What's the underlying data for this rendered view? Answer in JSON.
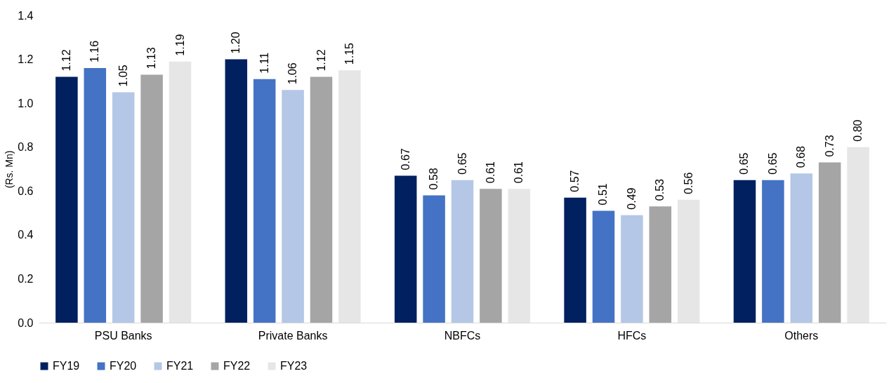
{
  "chart_data": {
    "type": "bar",
    "ylabel": "(Rs. Mn)",
    "categories": [
      "PSU Banks",
      "Private Banks",
      "NBFCs",
      "HFCs",
      "Others"
    ],
    "ylim": [
      0,
      1.4
    ],
    "yticks": [
      {
        "value": 0,
        "label": "0.0"
      },
      {
        "value": 0.2,
        "label": "0.2"
      },
      {
        "value": 0.4,
        "label": "0.4"
      },
      {
        "value": 0.6,
        "label": "0.6"
      },
      {
        "value": 0.8,
        "label": "0.8"
      },
      {
        "value": 1,
        "label": "1.0"
      },
      {
        "value": 1.2,
        "label": "1.2"
      },
      {
        "value": 1.4,
        "label": "1.4"
      }
    ],
    "grid": false,
    "legend": "bottom",
    "series": [
      {
        "name": "FY19",
        "color": "#002060",
        "values": [
          1.12,
          1.2,
          0.67,
          0.57,
          0.65
        ],
        "value_labels": [
          "1.12",
          "1.20",
          "0.67",
          "0.57",
          "0.65"
        ]
      },
      {
        "name": "FY20",
        "color": "#4472c4",
        "values": [
          1.16,
          1.11,
          0.58,
          0.51,
          0.65
        ],
        "value_labels": [
          "1.16",
          "1.11",
          "0.58",
          "0.51",
          "0.65"
        ]
      },
      {
        "name": "FY21",
        "color": "#b4c7e7",
        "values": [
          1.05,
          1.06,
          0.65,
          0.49,
          0.68
        ],
        "value_labels": [
          "1.05",
          "1.06",
          "0.65",
          "0.49",
          "0.68"
        ]
      },
      {
        "name": "FY22",
        "color": "#a5a5a5",
        "values": [
          1.13,
          1.12,
          0.61,
          0.53,
          0.73
        ],
        "value_labels": [
          "1.13",
          "1.12",
          "0.61",
          "0.53",
          "0.73"
        ]
      },
      {
        "name": "FY23",
        "color": "#e7e6e6",
        "values": [
          1.19,
          1.15,
          0.61,
          0.56,
          0.8
        ],
        "value_labels": [
          "1.19",
          "1.15",
          "0.61",
          "0.56",
          "0.80"
        ]
      }
    ]
  }
}
